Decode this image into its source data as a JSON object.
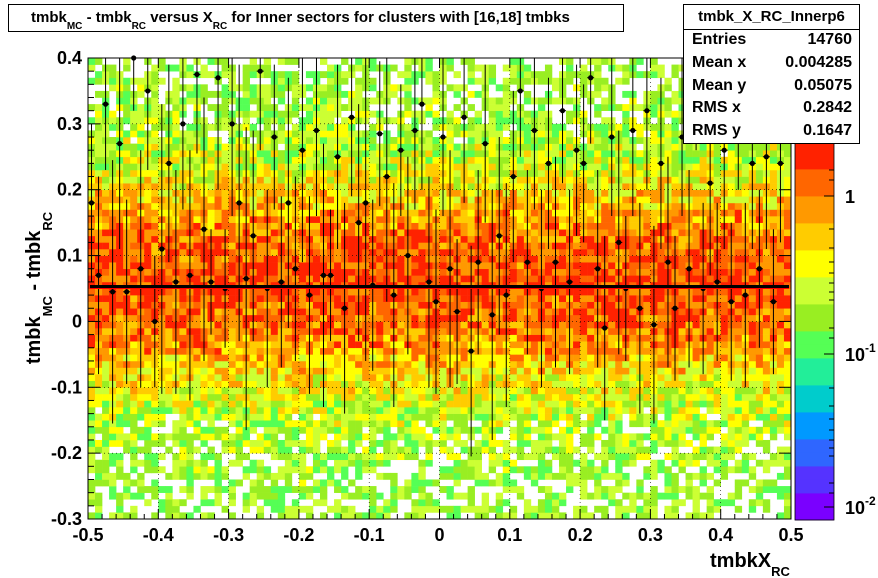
{
  "chart_data": {
    "type": "heatmap",
    "title_parts": {
      "a": "tmbk",
      "a_sub": "MC",
      "b": " - tmbk",
      "b_sub": "RC",
      "c": " versus X",
      "c_sub": "RC",
      "d": " for Inner sectors for clusters with [16,18] tmbks"
    },
    "xlabel": "tmbkX",
    "xlabel_sub": "RC",
    "ylabel_parts": {
      "a": "tmbk",
      "a_sub": "MC",
      "b": " - tmbk",
      "b_sub": "RC"
    },
    "xlim": [
      -0.5,
      0.5
    ],
    "ylim": [
      -0.3,
      0.4
    ],
    "x_ticks": [
      "-0.5",
      "-0.4",
      "-0.3",
      "-0.2",
      "-0.1",
      "0",
      "0.1",
      "0.2",
      "0.3",
      "0.4",
      "0.5"
    ],
    "y_ticks": [
      "-0.3",
      "-0.2",
      "-0.1",
      "0",
      "0.1",
      "0.2",
      "0.3",
      "0.4"
    ],
    "colorbar": {
      "scale": "log",
      "ticks": [
        {
          "base": "1",
          "exp": ""
        },
        {
          "base": "10",
          "exp": "-1"
        },
        {
          "base": "10",
          "exp": "-2"
        }
      ]
    },
    "fit_line_y": 0.053,
    "profile_points": [
      {
        "x": -0.495,
        "y": 0.18,
        "err": 0.12
      },
      {
        "x": -0.485,
        "y": 0.07,
        "err": 0.15
      },
      {
        "x": -0.475,
        "y": 0.33,
        "err": 0.1
      },
      {
        "x": -0.465,
        "y": 0.045,
        "err": 0.2
      },
      {
        "x": -0.455,
        "y": 0.27,
        "err": 0.16
      },
      {
        "x": -0.445,
        "y": 0.045,
        "err": 0.14
      },
      {
        "x": -0.435,
        "y": 0.4,
        "err": 0.08
      },
      {
        "x": -0.425,
        "y": 0.08,
        "err": 0.18
      },
      {
        "x": -0.415,
        "y": 0.35,
        "err": 0.12
      },
      {
        "x": -0.405,
        "y": 0.0,
        "err": 0.1
      },
      {
        "x": -0.395,
        "y": 0.11,
        "err": 0.22
      },
      {
        "x": -0.385,
        "y": 0.24,
        "err": 0.15
      },
      {
        "x": -0.375,
        "y": 0.06,
        "err": 0.17
      },
      {
        "x": -0.365,
        "y": 0.3,
        "err": 0.13
      },
      {
        "x": -0.355,
        "y": 0.07,
        "err": 0.19
      },
      {
        "x": -0.345,
        "y": 0.375,
        "err": 0.12
      },
      {
        "x": -0.335,
        "y": 0.14,
        "err": 0.2
      },
      {
        "x": -0.325,
        "y": 0.06,
        "err": 0.08
      },
      {
        "x": -0.315,
        "y": 0.37,
        "err": 0.17
      },
      {
        "x": -0.305,
        "y": 0.05,
        "err": 0.09
      },
      {
        "x": -0.295,
        "y": 0.3,
        "err": 0.14
      },
      {
        "x": -0.285,
        "y": 0.18,
        "err": 0.21
      },
      {
        "x": -0.275,
        "y": 0.065,
        "err": 0.23
      },
      {
        "x": -0.265,
        "y": 0.13,
        "err": 0.16
      },
      {
        "x": -0.255,
        "y": 0.38,
        "err": 0.12
      },
      {
        "x": -0.245,
        "y": 0.05,
        "err": 0.15
      },
      {
        "x": -0.235,
        "y": 0.28,
        "err": 0.11
      },
      {
        "x": -0.225,
        "y": 0.06,
        "err": 0.13
      },
      {
        "x": -0.215,
        "y": 0.18,
        "err": 0.19
      },
      {
        "x": -0.205,
        "y": 0.08,
        "err": 0.14
      },
      {
        "x": -0.195,
        "y": 0.26,
        "err": 0.17
      },
      {
        "x": -0.185,
        "y": 0.04,
        "err": 0.15
      },
      {
        "x": -0.175,
        "y": 0.29,
        "err": 0.13
      },
      {
        "x": -0.165,
        "y": 0.07,
        "err": 0.2
      },
      {
        "x": -0.155,
        "y": 0.07,
        "err": 0.1
      },
      {
        "x": -0.145,
        "y": 0.25,
        "err": 0.14
      },
      {
        "x": -0.135,
        "y": 0.02,
        "err": 0.16
      },
      {
        "x": -0.125,
        "y": 0.31,
        "err": 0.12
      },
      {
        "x": -0.115,
        "y": 0.15,
        "err": 0.18
      },
      {
        "x": -0.105,
        "y": 0.18,
        "err": 0.24
      },
      {
        "x": -0.095,
        "y": 0.055,
        "err": 0.13
      },
      {
        "x": -0.085,
        "y": 0.285,
        "err": 0.11
      },
      {
        "x": -0.075,
        "y": 0.22,
        "err": 0.19
      },
      {
        "x": -0.065,
        "y": 0.04,
        "err": 0.17
      },
      {
        "x": -0.055,
        "y": 0.26,
        "err": 0.1
      },
      {
        "x": -0.045,
        "y": 0.1,
        "err": 0.15
      },
      {
        "x": -0.035,
        "y": 0.29,
        "err": 0.12
      },
      {
        "x": -0.025,
        "y": 0.33,
        "err": 0.13
      },
      {
        "x": -0.015,
        "y": 0.06,
        "err": 0.16
      },
      {
        "x": -0.005,
        "y": 0.03,
        "err": 0.14
      },
      {
        "x": 0.005,
        "y": 0.28,
        "err": 0.12
      },
      {
        "x": 0.015,
        "y": 0.08,
        "err": 0.18
      },
      {
        "x": 0.025,
        "y": 0.015,
        "err": 0.11
      },
      {
        "x": 0.035,
        "y": 0.31,
        "err": 0.13
      },
      {
        "x": 0.045,
        "y": -0.045,
        "err": 0.16
      },
      {
        "x": 0.055,
        "y": 0.09,
        "err": 0.14
      },
      {
        "x": 0.065,
        "y": 0.27,
        "err": 0.12
      },
      {
        "x": 0.075,
        "y": 0.01,
        "err": 0.19
      },
      {
        "x": 0.085,
        "y": 0.13,
        "err": 0.15
      },
      {
        "x": 0.095,
        "y": 0.04,
        "err": 0.17
      },
      {
        "x": 0.105,
        "y": 0.22,
        "err": 0.13
      },
      {
        "x": 0.115,
        "y": 0.35,
        "err": 0.1
      },
      {
        "x": 0.125,
        "y": 0.09,
        "err": 0.14
      },
      {
        "x": 0.135,
        "y": 0.29,
        "err": 0.12
      },
      {
        "x": 0.145,
        "y": 0.05,
        "err": 0.15
      },
      {
        "x": 0.155,
        "y": 0.24,
        "err": 0.13
      },
      {
        "x": 0.165,
        "y": 0.09,
        "err": 0.16
      },
      {
        "x": 0.175,
        "y": 0.32,
        "err": 0.11
      },
      {
        "x": 0.185,
        "y": 0.06,
        "err": 0.14
      },
      {
        "x": 0.195,
        "y": 0.26,
        "err": 0.13
      },
      {
        "x": 0.205,
        "y": 0.24,
        "err": 0.12
      },
      {
        "x": 0.215,
        "y": 0.37,
        "err": 0.1
      },
      {
        "x": 0.225,
        "y": 0.08,
        "err": 0.15
      },
      {
        "x": 0.235,
        "y": -0.01,
        "err": 0.14
      },
      {
        "x": 0.245,
        "y": 0.28,
        "err": 0.12
      },
      {
        "x": 0.255,
        "y": 0.12,
        "err": 0.17
      },
      {
        "x": 0.265,
        "y": 0.05,
        "err": 0.11
      },
      {
        "x": 0.275,
        "y": 0.29,
        "err": 0.13
      },
      {
        "x": 0.285,
        "y": 0.02,
        "err": 0.16
      },
      {
        "x": 0.295,
        "y": 0.32,
        "err": 0.12
      },
      {
        "x": 0.305,
        "y": -0.005,
        "err": 0.15
      },
      {
        "x": 0.315,
        "y": 0.24,
        "err": 0.13
      },
      {
        "x": 0.325,
        "y": 0.09,
        "err": 0.16
      },
      {
        "x": 0.335,
        "y": 0.02,
        "err": 0.11
      },
      {
        "x": 0.345,
        "y": 0.28,
        "err": 0.12
      },
      {
        "x": 0.355,
        "y": 0.08,
        "err": 0.15
      },
      {
        "x": 0.365,
        "y": 0.36,
        "err": 0.1
      },
      {
        "x": 0.375,
        "y": 0.05,
        "err": 0.13
      },
      {
        "x": 0.385,
        "y": 0.21,
        "err": 0.14
      },
      {
        "x": 0.395,
        "y": 0.06,
        "err": 0.12
      },
      {
        "x": 0.405,
        "y": 0.26,
        "err": 0.15
      },
      {
        "x": 0.415,
        "y": 0.03,
        "err": 0.12
      },
      {
        "x": 0.425,
        "y": 0.31,
        "err": 0.11
      },
      {
        "x": 0.435,
        "y": 0.04,
        "err": 0.14
      },
      {
        "x": 0.445,
        "y": 0.24,
        "err": 0.13
      },
      {
        "x": 0.455,
        "y": 0.08,
        "err": 0.12
      },
      {
        "x": 0.465,
        "y": 0.25,
        "err": 0.14
      },
      {
        "x": 0.475,
        "y": 0.03,
        "err": 0.11
      },
      {
        "x": 0.485,
        "y": 0.24,
        "err": 0.12
      }
    ]
  },
  "stats": {
    "name": "tmbk_X_RC_Innerp6",
    "rows": [
      {
        "key": "Entries",
        "value": "14760"
      },
      {
        "key": "Mean x",
        "value": "0.004285"
      },
      {
        "key": "Mean y",
        "value": "0.05075"
      },
      {
        "key": "RMS x",
        "value": "0.2842"
      },
      {
        "key": "RMS y",
        "value": "0.1647"
      }
    ]
  },
  "colors": {
    "palette": [
      "#7a00ff",
      "#5533ff",
      "#2f66ff",
      "#0099ff",
      "#00cccc",
      "#22ee99",
      "#55ff55",
      "#99ee22",
      "#ccff33",
      "#ffff00",
      "#ffcc00",
      "#ff9900",
      "#ff6600",
      "#ff2200"
    ],
    "fit_line": "#000000",
    "fit_line_overlay": "#ff0000"
  }
}
